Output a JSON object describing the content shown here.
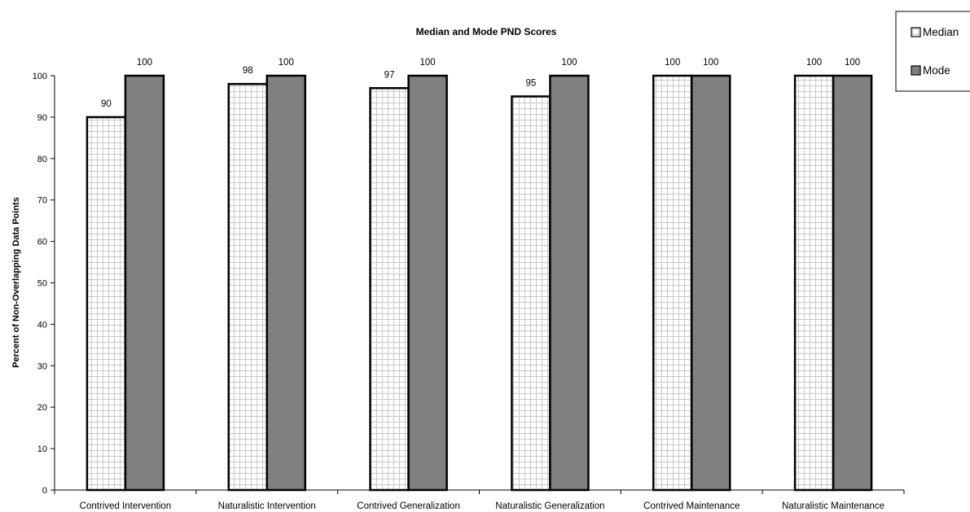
{
  "chart_data": {
    "type": "bar",
    "title": "Median and Mode PND Scores",
    "xlabel": "",
    "ylabel": "Percent of Non-Overlapping Data Points",
    "ylim": [
      0,
      100
    ],
    "ytick_step": 10,
    "grid": false,
    "legend_position": "top-right",
    "categories": [
      "Contrived Intervention",
      "Naturalistic Intervention",
      "Contrived Generalization",
      "Naturalistic Generalization",
      "Contrived Maintenance",
      "Naturalistic Maintenance"
    ],
    "series": [
      {
        "name": "Median",
        "values": [
          90,
          98,
          97,
          95,
          100,
          100
        ],
        "fill": "checkered",
        "color": "#ffffff",
        "pattern_color": "#c8c8c8"
      },
      {
        "name": "Mode",
        "values": [
          100,
          100,
          100,
          100,
          100,
          100
        ],
        "fill": "solid",
        "color": "#808080"
      }
    ]
  }
}
